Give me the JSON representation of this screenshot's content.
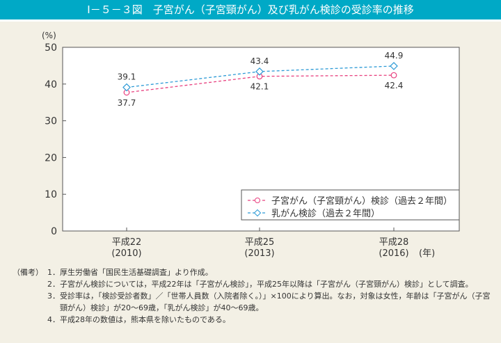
{
  "title": "Ⅰ－５－３図　子宮がん（子宮頸がん）及び乳がん検診の受診率の推移",
  "chart_data": {
    "type": "line",
    "ylabel": "(%)",
    "ylim": [
      0,
      50
    ],
    "yticks": [
      0,
      10,
      20,
      30,
      40,
      50
    ],
    "categories": [
      "平成22\n(2010)",
      "平成25\n(2013)",
      "平成28\n(2016)"
    ],
    "category_lines": [
      [
        "平成22",
        "(2010)"
      ],
      [
        "平成25",
        "(2013)"
      ],
      [
        "平成28",
        "(2016)"
      ]
    ],
    "x_unit": "(年)",
    "grid": false,
    "legend_position": "bottom-right",
    "series": [
      {
        "name": "子宮がん（子宮頸がん）検診（過去２年間）",
        "values": [
          37.7,
          42.1,
          42.4
        ],
        "color": "#e8407f",
        "marker": "circle",
        "labels": [
          "37.7",
          "42.1",
          "42.4"
        ]
      },
      {
        "name": "乳がん検診（過去２年間）",
        "values": [
          39.1,
          43.4,
          44.9
        ],
        "color": "#2c9ad6",
        "marker": "diamond",
        "labels": [
          "39.1",
          "43.4",
          "44.9"
        ]
      }
    ]
  },
  "notes": {
    "heading": "（備考）",
    "items": [
      {
        "num": "1．",
        "text": "厚生労働省「国民生活基礎調査」より作成。"
      },
      {
        "num": "2．",
        "text": "子宮がん検診については，平成22年は「子宮がん検診」，平成25年以降は「子宮がん（子宮頸がん）検診」として調査。"
      },
      {
        "num": "3．",
        "text": "受診率は，「検診受診者数」／「世帯人員数（入院者除く。）」×100により算出。なお，対象は女性，年齢は「子宮がん（子宮頸がん）検診」が20～69歳，「乳がん検診」が40～69歳。"
      },
      {
        "num": "4．",
        "text": "平成28年の数値は，熊本県を除いたものである。"
      }
    ]
  }
}
